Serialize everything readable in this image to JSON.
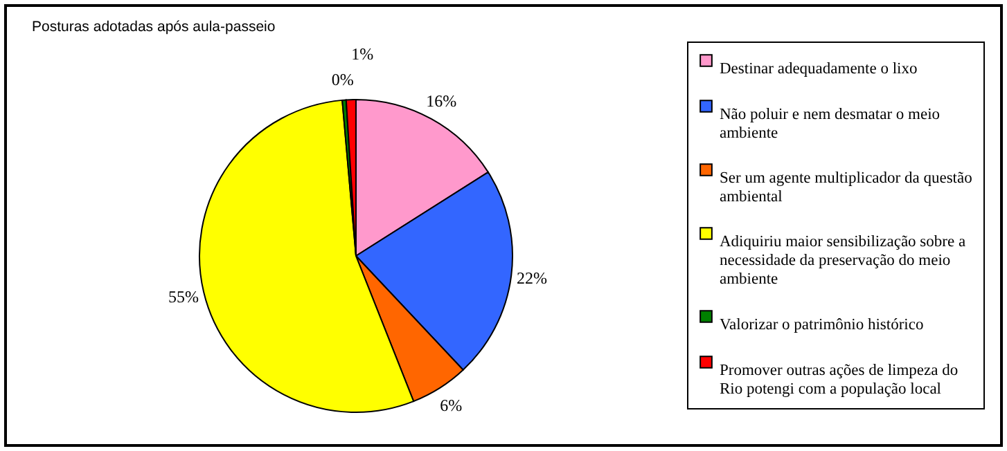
{
  "chart_data": {
    "type": "pie",
    "title": "Posturas adotadas após aula-passeio",
    "categories": [
      "Destinar adequadamente o lixo",
      "Não poluir e nem desmatar o meio ambiente",
      "Ser um agente multiplicador da questão ambiental",
      "Adiquiriu maior sensibilização sobre a necessidade da preservação do meio ambiente",
      "Valorizar o patrimônio histórico",
      "Promover outras ações de limpeza do Rio potengi com a população local"
    ],
    "values": [
      16,
      22,
      6,
      54.6,
      0.4,
      1
    ],
    "value_labels": [
      "16%",
      "22%",
      "6%",
      "55%",
      "0%",
      "1%"
    ],
    "colors": [
      "#ff99cc",
      "#3366ff",
      "#ff6600",
      "#ffff00",
      "#008000",
      "#ff0000"
    ],
    "legend": "right"
  }
}
